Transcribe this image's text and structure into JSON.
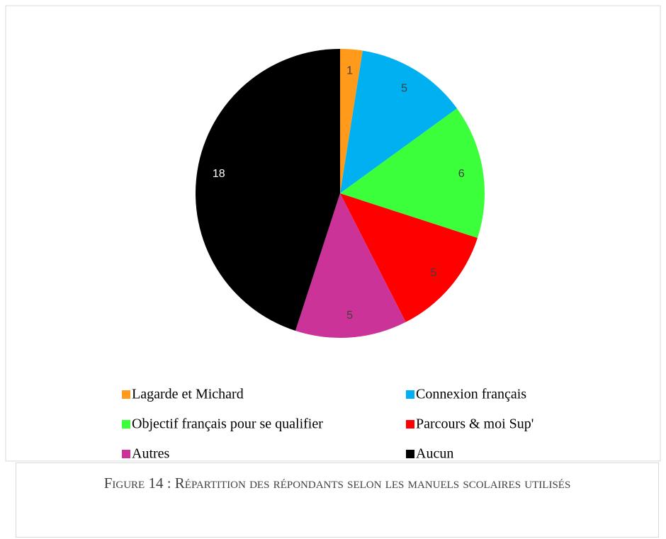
{
  "chart_data": {
    "type": "pie",
    "categories": [
      "Lagarde et Michard",
      "Connexion français",
      "Objectif français pour se qualifier",
      "Parcours & moi Sup'",
      "Autres",
      "Aucun"
    ],
    "values": [
      1,
      5,
      6,
      5,
      5,
      18
    ],
    "colors": [
      "#ff9a1a",
      "#00b0f0",
      "#3cff3c",
      "#ff0000",
      "#cc3399",
      "#000000"
    ]
  },
  "caption": "Figure 14 : Répartition des répondants selon les manuels scolaires utilisés"
}
